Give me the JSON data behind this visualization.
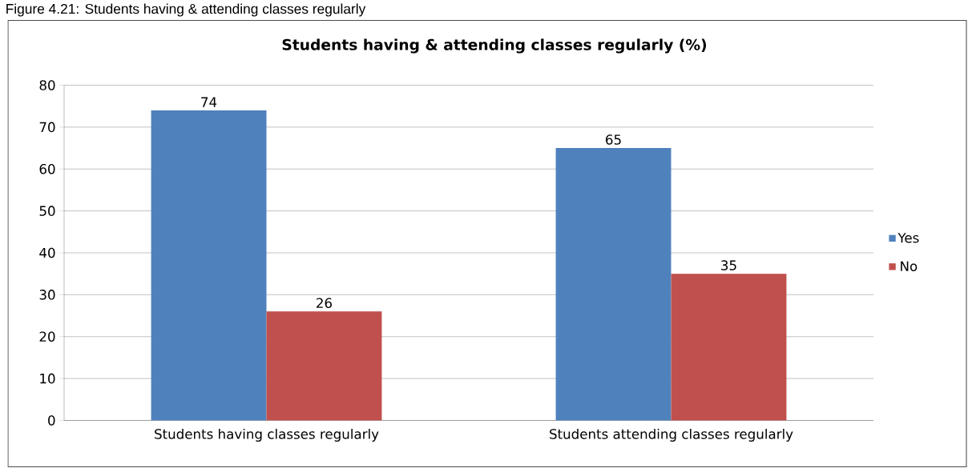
{
  "chart_data": {
    "type": "bar",
    "title": "Students having & attending classes regularly (%)",
    "annotations": [
      "Figure 4.21:  Students having & attending classes regularly"
    ],
    "categories": [
      "Students having classes regularly",
      "Students attending classes regularly"
    ],
    "series": [
      {
        "name": "Yes",
        "color": "#4f81bd",
        "values": [
          74,
          65
        ]
      },
      {
        "name": "No",
        "color": "#c0504d",
        "values": [
          26,
          35
        ]
      }
    ],
    "ylim": [
      0,
      80
    ],
    "yticks": [
      0,
      10,
      20,
      30,
      40,
      50,
      60,
      70,
      80
    ],
    "grid": "y",
    "legend": "right",
    "data_labels": true
  }
}
